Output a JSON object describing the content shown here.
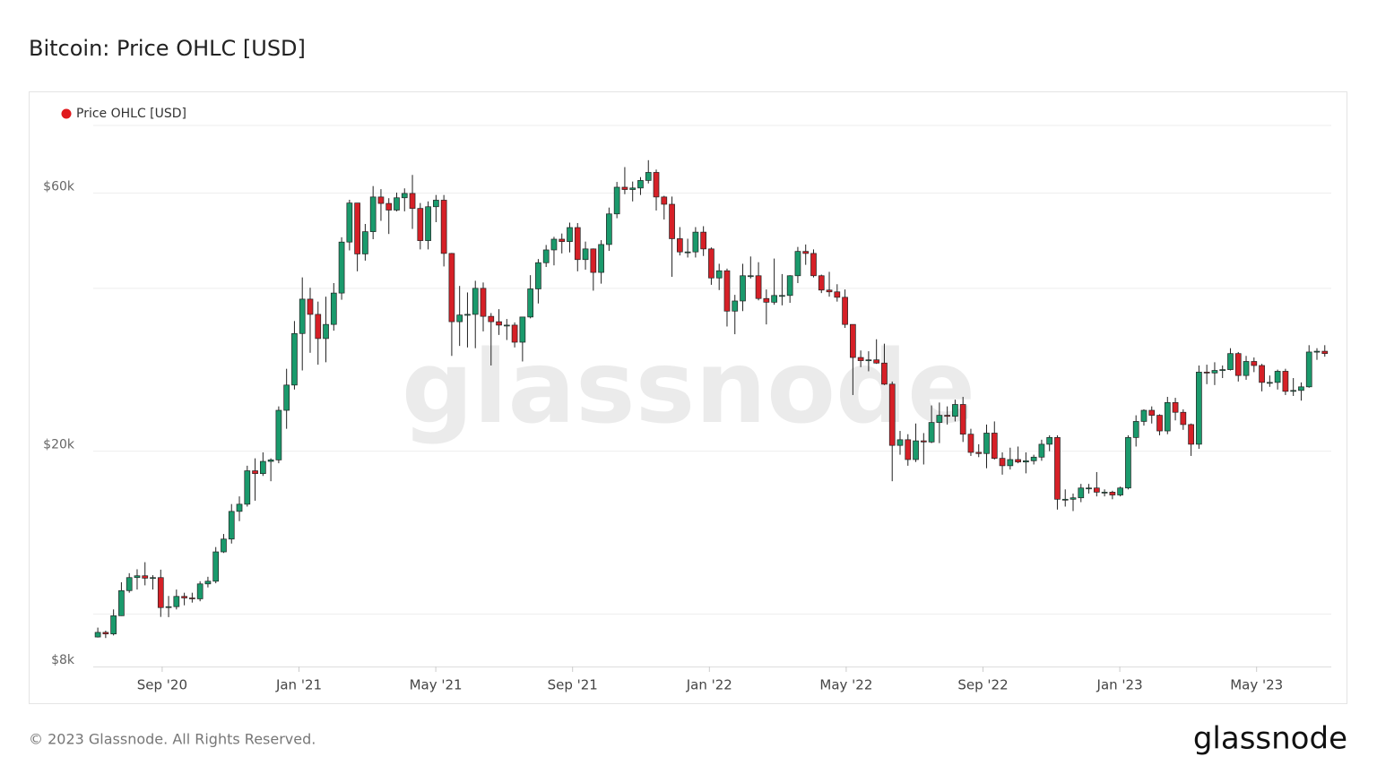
{
  "chart_data": {
    "type": "candlestick",
    "title": "Bitcoin: Price OHLC [USD]",
    "series": [
      {
        "name": "Price OHLC [USD]",
        "color": "#e0191d",
        "up_color": "#1a9a6c",
        "down_color": "#d62027",
        "ohlc": [
          [
            9070,
            9440,
            9050,
            9250
          ],
          [
            9250,
            9320,
            9030,
            9190
          ],
          [
            9190,
            10200,
            9130,
            9930
          ],
          [
            9930,
            11450,
            9920,
            11050
          ],
          [
            11050,
            11900,
            10950,
            11680
          ],
          [
            11680,
            12100,
            11100,
            11770
          ],
          [
            11770,
            12470,
            11300,
            11650
          ],
          [
            11650,
            11800,
            11100,
            11680
          ],
          [
            11680,
            12080,
            9880,
            10280
          ],
          [
            10280,
            10800,
            9870,
            10320
          ],
          [
            10320,
            11100,
            10200,
            10780
          ],
          [
            10780,
            10950,
            10380,
            10710
          ],
          [
            10710,
            10950,
            10500,
            10670
          ],
          [
            10670,
            11500,
            10560,
            11370
          ],
          [
            11370,
            11720,
            11200,
            11500
          ],
          [
            11500,
            13300,
            11400,
            13030
          ],
          [
            13030,
            14060,
            12970,
            13760
          ],
          [
            13760,
            15970,
            13500,
            15480
          ],
          [
            15480,
            16500,
            14850,
            15960
          ],
          [
            15960,
            18800,
            15800,
            18400
          ],
          [
            18400,
            19400,
            16200,
            18180
          ],
          [
            18180,
            19900,
            18000,
            19150
          ],
          [
            19150,
            19400,
            17600,
            19270
          ],
          [
            19270,
            24200,
            19000,
            23800
          ],
          [
            23800,
            28400,
            22000,
            26500
          ],
          [
            26500,
            34800,
            26000,
            33000
          ],
          [
            33000,
            41900,
            28200,
            38200
          ],
          [
            38200,
            40100,
            30400,
            35800
          ],
          [
            35800,
            37800,
            28900,
            32300
          ],
          [
            32300,
            38600,
            29200,
            34300
          ],
          [
            34300,
            40900,
            33400,
            39200
          ],
          [
            39200,
            49700,
            38100,
            48700
          ],
          [
            48700,
            58300,
            47000,
            57500
          ],
          [
            57500,
            57500,
            43000,
            46300
          ],
          [
            46300,
            52600,
            45000,
            50900
          ],
          [
            50900,
            61800,
            49300,
            59000
          ],
          [
            59000,
            61000,
            53300,
            57400
          ],
          [
            57400,
            58700,
            50400,
            55800
          ],
          [
            55800,
            60100,
            55500,
            58800
          ],
          [
            58800,
            61200,
            55500,
            59900
          ],
          [
            59900,
            64800,
            51500,
            56200
          ],
          [
            56200,
            57500,
            47200,
            49000
          ],
          [
            49000,
            57900,
            47200,
            56600
          ],
          [
            56600,
            59500,
            53000,
            58200
          ],
          [
            58200,
            59500,
            43900,
            46400
          ],
          [
            46400,
            46500,
            30000,
            34700
          ],
          [
            34700,
            40400,
            31300,
            35700
          ],
          [
            35700,
            39300,
            31100,
            35800
          ],
          [
            35800,
            41300,
            31000,
            40000
          ],
          [
            40000,
            41000,
            33300,
            35500
          ],
          [
            35500,
            36000,
            28800,
            34700
          ],
          [
            34700,
            36600,
            32800,
            34200
          ],
          [
            34200,
            35100,
            32100,
            34200
          ],
          [
            34200,
            34600,
            31100,
            31800
          ],
          [
            31800,
            35400,
            29300,
            35400
          ],
          [
            35400,
            42300,
            35200,
            39900
          ],
          [
            39900,
            45300,
            37500,
            44600
          ],
          [
            44600,
            48100,
            43800,
            47100
          ],
          [
            47100,
            49800,
            44100,
            49300
          ],
          [
            49300,
            50500,
            46400,
            48800
          ],
          [
            48800,
            52900,
            46600,
            51800
          ],
          [
            51800,
            52800,
            43000,
            45200
          ],
          [
            45200,
            48800,
            43300,
            47300
          ],
          [
            47300,
            47400,
            39600,
            42800
          ],
          [
            42800,
            49100,
            40800,
            48200
          ],
          [
            48200,
            56400,
            46900,
            54900
          ],
          [
            54900,
            62900,
            53900,
            61500
          ],
          [
            61500,
            67000,
            59700,
            60900
          ],
          [
            60900,
            63000,
            57900,
            61300
          ],
          [
            61300,
            64200,
            59500,
            63300
          ],
          [
            63300,
            69000,
            62500,
            65500
          ],
          [
            65500,
            66300,
            55700,
            59000
          ],
          [
            59000,
            59300,
            53600,
            57200
          ],
          [
            57200,
            59100,
            42000,
            49400
          ],
          [
            49400,
            51900,
            46000,
            46700
          ],
          [
            46700,
            49400,
            45600,
            46700
          ],
          [
            46700,
            51900,
            45600,
            50800
          ],
          [
            50800,
            52100,
            45900,
            47300
          ],
          [
            47300,
            47600,
            40600,
            41800
          ],
          [
            41800,
            44400,
            39700,
            43100
          ],
          [
            43100,
            43500,
            34000,
            36300
          ],
          [
            36300,
            38900,
            32900,
            37900
          ],
          [
            37900,
            44400,
            36300,
            42200
          ],
          [
            42200,
            45800,
            41700,
            42200
          ],
          [
            42200,
            44700,
            38000,
            38300
          ],
          [
            38300,
            39800,
            34300,
            37700
          ],
          [
            37700,
            45400,
            37300,
            38800
          ],
          [
            38800,
            42500,
            37200,
            38800
          ],
          [
            38800,
            42300,
            37600,
            42200
          ],
          [
            42200,
            47700,
            40900,
            46800
          ],
          [
            46800,
            48200,
            44200,
            46400
          ],
          [
            46400,
            47200,
            41900,
            42200
          ],
          [
            42200,
            42400,
            39200,
            39700
          ],
          [
            39700,
            42900,
            38600,
            39400
          ],
          [
            39400,
            40700,
            37800,
            38500
          ],
          [
            38500,
            39800,
            33800,
            34300
          ],
          [
            34300,
            34300,
            25400,
            29800
          ],
          [
            29800,
            30700,
            28600,
            29400
          ],
          [
            29400,
            30600,
            28100,
            29500
          ],
          [
            29500,
            32200,
            29000,
            29100
          ],
          [
            29100,
            31600,
            26500,
            26600
          ],
          [
            26600,
            26900,
            17600,
            20500
          ],
          [
            20500,
            21800,
            19700,
            21000
          ],
          [
            21000,
            21500,
            18800,
            19300
          ],
          [
            19300,
            22500,
            19100,
            20900
          ],
          [
            20900,
            21600,
            18900,
            20800
          ],
          [
            20800,
            24300,
            20700,
            22600
          ],
          [
            22600,
            24600,
            20700,
            23300
          ],
          [
            23300,
            24200,
            22400,
            23200
          ],
          [
            23200,
            24900,
            22700,
            24400
          ],
          [
            24400,
            25200,
            20800,
            21500
          ],
          [
            21500,
            22000,
            19600,
            19900
          ],
          [
            19900,
            20600,
            19500,
            19800
          ],
          [
            19800,
            22400,
            18600,
            21600
          ],
          [
            21600,
            22700,
            19300,
            19400
          ],
          [
            19400,
            19900,
            18100,
            18800
          ],
          [
            18800,
            20300,
            18500,
            19300
          ],
          [
            19300,
            20400,
            19000,
            19100
          ],
          [
            19100,
            19900,
            18200,
            19200
          ],
          [
            19200,
            19700,
            18900,
            19500
          ],
          [
            19500,
            21000,
            19200,
            20600
          ],
          [
            20600,
            21400,
            20000,
            21200
          ],
          [
            21200,
            21400,
            15600,
            16300
          ],
          [
            16300,
            17000,
            15800,
            16300
          ],
          [
            16300,
            16700,
            15500,
            16400
          ],
          [
            16400,
            17400,
            16100,
            17100
          ],
          [
            17100,
            17400,
            16700,
            17100
          ],
          [
            17100,
            18300,
            16500,
            16800
          ],
          [
            16800,
            17000,
            16500,
            16800
          ],
          [
            16800,
            16900,
            16300,
            16600
          ],
          [
            16600,
            17200,
            16500,
            17100
          ],
          [
            17100,
            21400,
            17000,
            21200
          ],
          [
            21200,
            23300,
            20400,
            22700
          ],
          [
            22700,
            23900,
            22300,
            23800
          ],
          [
            23800,
            24200,
            22500,
            23300
          ],
          [
            23300,
            23400,
            21400,
            21800
          ],
          [
            21800,
            25200,
            21500,
            24600
          ],
          [
            24600,
            25100,
            22800,
            23600
          ],
          [
            23600,
            23900,
            21900,
            22400
          ],
          [
            22400,
            22500,
            19600,
            20600
          ],
          [
            20600,
            28800,
            20200,
            28000
          ],
          [
            28000,
            28900,
            26600,
            27900
          ],
          [
            27900,
            29200,
            26500,
            28200
          ],
          [
            28200,
            28800,
            27300,
            28300
          ],
          [
            28300,
            31000,
            28200,
            30300
          ],
          [
            30300,
            30500,
            26900,
            27600
          ],
          [
            27600,
            30000,
            27100,
            29300
          ],
          [
            29300,
            29800,
            28000,
            28800
          ],
          [
            28800,
            29000,
            25800,
            26800
          ],
          [
            26800,
            27600,
            26300,
            26800
          ],
          [
            26800,
            28300,
            26000,
            28100
          ],
          [
            28100,
            28400,
            25400,
            25800
          ],
          [
            25800,
            27300,
            25300,
            25900
          ],
          [
            25900,
            26800,
            24800,
            26300
          ],
          [
            26300,
            31400,
            26200,
            30500
          ],
          [
            30500,
            31000,
            29500,
            30600
          ],
          [
            30600,
            31400,
            29900,
            30300
          ]
        ]
      }
    ],
    "xlim": [
      "2020-07",
      "2023-07"
    ],
    "xticks": [
      {
        "value": "2020-09",
        "label": "Sep '20"
      },
      {
        "value": "2021-01",
        "label": "Jan '21"
      },
      {
        "value": "2021-05",
        "label": "May '21"
      },
      {
        "value": "2021-09",
        "label": "Sep '21"
      },
      {
        "value": "2022-01",
        "label": "Jan '22"
      },
      {
        "value": "2022-05",
        "label": "May '22"
      },
      {
        "value": "2022-09",
        "label": "Sep '22"
      },
      {
        "value": "2023-01",
        "label": "Jan '23"
      },
      {
        "value": "2023-05",
        "label": "May '23"
      }
    ],
    "ylim": [
      8000,
      80000
    ],
    "log_scale": true,
    "yticks": [
      {
        "value": 8000,
        "label": "$8k"
      },
      {
        "value": 20000,
        "label": "$20k"
      },
      {
        "value": 60000,
        "label": "$60k"
      }
    ],
    "ygrid": [
      10000,
      20000,
      40000,
      60000,
      80000
    ],
    "grid": true,
    "legend": "top-left"
  },
  "watermark": "glassnode",
  "footer": "© 2023 Glassnode. All Rights Reserved.",
  "logo": "glassnode"
}
